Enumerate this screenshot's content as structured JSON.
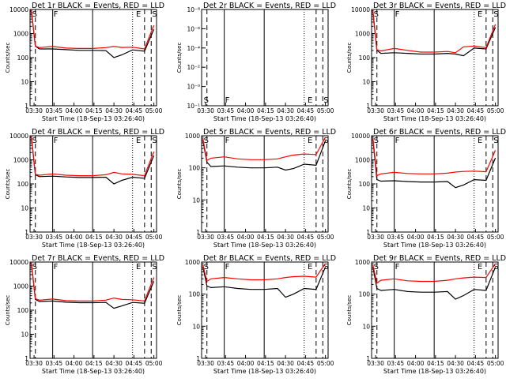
{
  "chart_data": [
    {
      "type": "line",
      "title": "Det 1r BLACK = Events, RED = LLD",
      "xlabel": "Start Time (18-Sep-13 03:26:40)",
      "ylabel": "Counts/sec",
      "x_ticks": [
        "03:30",
        "03:45",
        "04:00",
        "04:15",
        "04:30",
        "04:45",
        "05:00"
      ],
      "y_ticks": [
        "1",
        "10",
        "100",
        "1000",
        "10000"
      ],
      "ylim": [
        1,
        10000
      ],
      "y_scale": "log",
      "markers": [
        "S",
        "F",
        "E",
        "S"
      ],
      "series": [
        {
          "name": "Events",
          "color": "#000000",
          "values": [
            9000,
            300,
            230,
            230,
            215,
            200,
            200,
            195,
            100,
            130,
            210,
            185,
            1500
          ]
        },
        {
          "name": "LLD",
          "color": "#ff0000",
          "values": [
            9500,
            300,
            260,
            290,
            250,
            240,
            240,
            260,
            290,
            265,
            270,
            230,
            2200
          ]
        }
      ]
    },
    {
      "type": "line",
      "title": "Det 2r BLACK = Events, RED = LLD",
      "xlabel": "Start Time (18-Sep-13 03:26:40)",
      "ylabel": "Counts/sec",
      "x_ticks": [
        "03:30",
        "03:45",
        "04:00",
        "04:15",
        "04:30",
        "04:45",
        "05:00"
      ],
      "y_ticks": [
        "10⁻¹",
        "10⁻⁰",
        "10⁻²",
        "10⁻⁴",
        "10⁻⁶",
        "10⁻⁸"
      ],
      "y_scale": "log",
      "markers": [
        "S",
        "F",
        "E",
        "S"
      ],
      "series": []
    },
    {
      "type": "line",
      "title": "Det 3r BLACK = Events, RED = LLD",
      "xlabel": "Start Time (18-Sep-13 03:26:40)",
      "ylabel": "Counts/sec",
      "x_ticks": [
        "03:30",
        "03:45",
        "04:00",
        "04:15",
        "04:30",
        "04:45",
        "05:00"
      ],
      "y_ticks": [
        "1",
        "10",
        "100",
        "1000",
        "10000"
      ],
      "ylim": [
        1,
        10000
      ],
      "y_scale": "log",
      "markers": [
        "S",
        "F",
        "E",
        "S"
      ],
      "series": [
        {
          "name": "Events",
          "color": "#000000",
          "values": [
            8000,
            200,
            150,
            160,
            150,
            140,
            140,
            150,
            140,
            120,
            250,
            230,
            1800
          ]
        },
        {
          "name": "LLD",
          "color": "#ff0000",
          "values": [
            9000,
            210,
            190,
            240,
            200,
            170,
            170,
            180,
            160,
            280,
            300,
            260,
            2400
          ]
        }
      ]
    },
    {
      "type": "line",
      "title": "Det 4r BLACK = Events, RED = LLD",
      "xlabel": "Start Time (18-Sep-13 03:26:40)",
      "ylabel": "Counts/sec",
      "x_ticks": [
        "03:30",
        "03:45",
        "04:00",
        "04:15",
        "04:30",
        "04:45",
        "05:00"
      ],
      "y_ticks": [
        "1",
        "10",
        "100",
        "1000",
        "10000"
      ],
      "ylim": [
        1,
        10000
      ],
      "y_scale": "log",
      "markers": [
        "S",
        "F",
        "E",
        "S"
      ],
      "series": [
        {
          "name": "Events",
          "color": "#000000",
          "values": [
            9000,
            240,
            200,
            210,
            195,
            185,
            185,
            190,
            100,
            140,
            190,
            170,
            1500
          ]
        },
        {
          "name": "LLD",
          "color": "#ff0000",
          "values": [
            9500,
            250,
            230,
            260,
            230,
            220,
            220,
            240,
            300,
            260,
            250,
            220,
            2200
          ]
        }
      ]
    },
    {
      "type": "line",
      "title": "Det 5r BLACK = Events, RED = LLD",
      "xlabel": "Start Time (18-Sep-13 03:26:40)",
      "ylabel": "Counts/sec",
      "x_ticks": [
        "03:30",
        "03:45",
        "04:00",
        "04:15",
        "04:30",
        "04:45",
        "05:00"
      ],
      "y_ticks": [
        "1",
        "10",
        "100",
        "1000"
      ],
      "ylim": [
        1,
        1000
      ],
      "y_scale": "log",
      "markers": [
        "S",
        "F",
        "E",
        "S"
      ],
      "series": [
        {
          "name": "Events",
          "color": "#000000",
          "values": [
            700,
            150,
            110,
            115,
            105,
            100,
            100,
            105,
            85,
            95,
            130,
            120,
            700
          ]
        },
        {
          "name": "LLD",
          "color": "#ff0000",
          "values": [
            800,
            170,
            200,
            220,
            190,
            180,
            180,
            190,
            220,
            250,
            270,
            260,
            900
          ]
        }
      ]
    },
    {
      "type": "line",
      "title": "Det 6r BLACK = Events, RED = LLD",
      "xlabel": "Start Time (18-Sep-13 03:26:40)",
      "ylabel": "Counts/sec",
      "x_ticks": [
        "03:30",
        "03:45",
        "04:00",
        "04:15",
        "04:30",
        "04:45",
        "05:00"
      ],
      "y_ticks": [
        "1",
        "10",
        "100",
        "1000",
        "10000"
      ],
      "ylim": [
        1,
        10000
      ],
      "y_scale": "log",
      "markers": [
        "S",
        "F",
        "E",
        "S"
      ],
      "series": [
        {
          "name": "Events",
          "color": "#000000",
          "values": [
            7000,
            150,
            130,
            135,
            125,
            120,
            120,
            125,
            70,
            90,
            150,
            140,
            1200
          ]
        },
        {
          "name": "LLD",
          "color": "#ff0000",
          "values": [
            8000,
            220,
            260,
            300,
            270,
            260,
            260,
            280,
            310,
            330,
            340,
            320,
            2500
          ]
        }
      ]
    },
    {
      "type": "line",
      "title": "Det 7r BLACK = Events, RED = LLD",
      "xlabel": "Start Time (18-Sep-13 03:26:40)",
      "ylabel": "Counts/sec",
      "x_ticks": [
        "03:30",
        "03:45",
        "04:00",
        "04:15",
        "04:30",
        "04:45",
        "05:00"
      ],
      "y_ticks": [
        "1",
        "10",
        "100",
        "1000",
        "10000"
      ],
      "ylim": [
        1,
        10000
      ],
      "y_scale": "log",
      "markers": [
        "S",
        "F",
        "E",
        "S"
      ],
      "series": [
        {
          "name": "Events",
          "color": "#000000",
          "values": [
            9000,
            280,
            230,
            240,
            215,
            205,
            205,
            210,
            120,
            150,
            210,
            195,
            1600
          ]
        },
        {
          "name": "LLD",
          "color": "#ff0000",
          "values": [
            9500,
            300,
            260,
            290,
            250,
            240,
            240,
            260,
            320,
            280,
            270,
            240,
            2300
          ]
        }
      ]
    },
    {
      "type": "line",
      "title": "Det 8r BLACK = Events, RED = LLD",
      "xlabel": "Start Time (18-Sep-13 03:26:40)",
      "ylabel": "Counts/sec",
      "x_ticks": [
        "03:30",
        "03:45",
        "04:00",
        "04:15",
        "04:30",
        "04:45",
        "05:00"
      ],
      "y_ticks": [
        "1",
        "10",
        "100",
        "1000"
      ],
      "ylim": [
        1,
        1000
      ],
      "y_scale": "log",
      "markers": [
        "S",
        "F",
        "E",
        "S"
      ],
      "series": [
        {
          "name": "Events",
          "color": "#000000",
          "values": [
            700,
            180,
            160,
            170,
            150,
            140,
            140,
            150,
            80,
            100,
            150,
            140,
            700
          ]
        },
        {
          "name": "LLD",
          "color": "#ff0000",
          "values": [
            800,
            250,
            300,
            330,
            300,
            280,
            280,
            300,
            330,
            350,
            360,
            340,
            900
          ]
        }
      ]
    },
    {
      "type": "line",
      "title": "Det 9r BLACK = Events, RED = LLD",
      "xlabel": "Start Time (18-Sep-13 03:26:40)",
      "ylabel": "Counts/sec",
      "x_ticks": [
        "03:30",
        "03:45",
        "04:00",
        "04:15",
        "04:30",
        "04:45",
        "05:00"
      ],
      "y_ticks": [
        "1",
        "10",
        "100",
        "1000"
      ],
      "ylim": [
        1,
        1000
      ],
      "y_scale": "log",
      "markers": [
        "S",
        "F",
        "E",
        "S"
      ],
      "series": [
        {
          "name": "Events",
          "color": "#000000",
          "values": [
            700,
            150,
            130,
            140,
            120,
            115,
            115,
            120,
            70,
            90,
            140,
            130,
            700
          ]
        },
        {
          "name": "LLD",
          "color": "#ff0000",
          "values": [
            800,
            220,
            270,
            300,
            260,
            250,
            250,
            270,
            300,
            320,
            340,
            330,
            900
          ]
        }
      ]
    }
  ]
}
